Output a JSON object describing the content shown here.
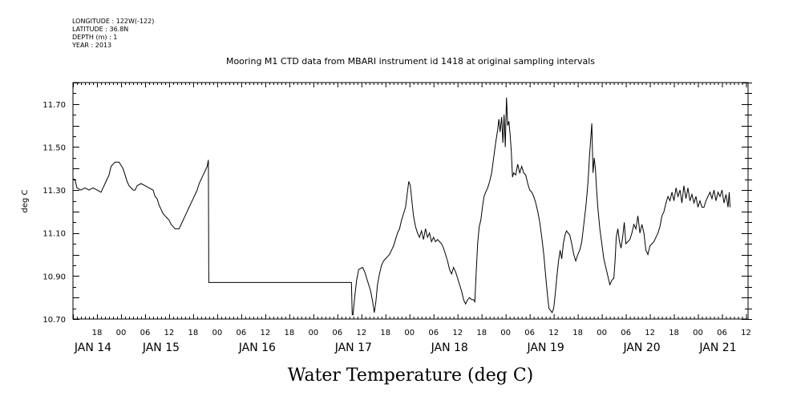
{
  "header": {
    "meta_lines": [
      "LONGITUDE : 122W(-122)",
      "LATITUDE : 36.8N",
      "DEPTH (m) : 1",
      "YEAR : 2013"
    ]
  },
  "chart_data": {
    "type": "line",
    "title": "Mooring M1 CTD data from MBARI instrument id 1418 at original sampling intervals",
    "xlabel": "Water Temperature (deg C)",
    "ylabel": "deg C",
    "x_unit": "hours since 2013-01-14 00:00",
    "xlim": [
      12,
      180.5
    ],
    "ylim": [
      10.7,
      11.8
    ],
    "y_ticks": [
      10.7,
      10.9,
      11.1,
      11.3,
      11.5,
      11.7
    ],
    "y_tick_labels": [
      "10.70",
      "10.90",
      "11.10",
      "11.30",
      "11.50",
      "11.70"
    ],
    "x_hour_ticks": [
      18,
      24,
      30,
      36,
      42,
      48,
      54,
      60,
      66,
      72,
      78,
      84,
      90,
      96,
      102,
      108,
      114,
      120,
      126,
      132,
      138,
      144,
      150,
      156,
      162,
      168,
      174,
      180
    ],
    "x_hour_labels": [
      "18",
      "00",
      "06",
      "12",
      "18",
      "00",
      "06",
      "12",
      "18",
      "00",
      "06",
      "12",
      "18",
      "00",
      "06",
      "12",
      "18",
      "00",
      "06",
      "12",
      "18",
      "00",
      "06",
      "12",
      "18",
      "00",
      "06",
      "12"
    ],
    "day_labels": [
      {
        "label": "JAN 14",
        "x": 17
      },
      {
        "label": "JAN 15",
        "x": 34
      },
      {
        "label": "JAN 16",
        "x": 58
      },
      {
        "label": "JAN 17",
        "x": 82
      },
      {
        "label": "JAN 18",
        "x": 106
      },
      {
        "label": "JAN 19",
        "x": 130
      },
      {
        "label": "JAN 20",
        "x": 154
      },
      {
        "label": "JAN 21",
        "x": 173
      }
    ],
    "grid": false,
    "series": [
      {
        "points": [
          [
            12.0,
            11.35
          ],
          [
            12.5,
            11.35
          ],
          [
            13.0,
            11.31
          ],
          [
            14.0,
            11.3
          ],
          [
            15.0,
            11.31
          ],
          [
            16.0,
            11.3
          ],
          [
            17.0,
            11.31
          ],
          [
            18.0,
            11.3
          ],
          [
            19.0,
            11.29
          ],
          [
            19.5,
            11.31
          ],
          [
            20.0,
            11.33
          ],
          [
            21.0,
            11.37
          ],
          [
            21.5,
            11.41
          ],
          [
            22.5,
            11.43
          ],
          [
            23.5,
            11.43
          ],
          [
            24.5,
            11.4
          ],
          [
            25.0,
            11.37
          ],
          [
            25.5,
            11.34
          ],
          [
            26.0,
            11.32
          ],
          [
            26.5,
            11.31
          ],
          [
            27.0,
            11.3
          ],
          [
            27.5,
            11.3
          ],
          [
            28.0,
            11.32
          ],
          [
            29.0,
            11.33
          ],
          [
            30.0,
            11.32
          ],
          [
            31.0,
            11.31
          ],
          [
            32.0,
            11.3
          ],
          [
            32.5,
            11.27
          ],
          [
            33.0,
            11.26
          ],
          [
            33.5,
            11.23
          ],
          [
            34.0,
            11.21
          ],
          [
            34.5,
            11.19
          ],
          [
            35.0,
            11.18
          ],
          [
            35.5,
            11.17
          ],
          [
            36.0,
            11.16
          ],
          [
            36.5,
            11.14
          ],
          [
            37.0,
            11.13
          ],
          [
            37.5,
            11.12
          ],
          [
            38.0,
            11.12
          ],
          [
            38.5,
            11.12
          ],
          [
            39.0,
            11.14
          ],
          [
            39.5,
            11.16
          ],
          [
            40.0,
            11.18
          ],
          [
            40.5,
            11.2
          ],
          [
            41.0,
            11.22
          ],
          [
            41.5,
            11.24
          ],
          [
            42.0,
            11.26
          ],
          [
            42.5,
            11.28
          ],
          [
            43.0,
            11.3
          ],
          [
            43.5,
            11.33
          ],
          [
            44.0,
            11.35
          ],
          [
            44.5,
            11.37
          ],
          [
            45.0,
            11.39
          ],
          [
            45.5,
            11.41
          ],
          [
            45.8,
            11.44
          ],
          [
            45.9,
            10.87
          ],
          [
            81.5,
            10.87
          ],
          [
            81.7,
            10.72
          ],
          [
            81.9,
            10.72
          ],
          [
            82.3,
            10.8
          ],
          [
            82.8,
            10.88
          ],
          [
            83.3,
            10.93
          ],
          [
            84.3,
            10.94
          ],
          [
            84.8,
            10.92
          ],
          [
            85.3,
            10.89
          ],
          [
            85.8,
            10.86
          ],
          [
            86.3,
            10.83
          ],
          [
            86.8,
            10.78
          ],
          [
            87.2,
            10.73
          ],
          [
            87.6,
            10.78
          ],
          [
            88.0,
            10.86
          ],
          [
            88.5,
            10.91
          ],
          [
            89.0,
            10.95
          ],
          [
            89.5,
            10.97
          ],
          [
            90.0,
            10.98
          ],
          [
            90.5,
            10.99
          ],
          [
            91.0,
            11.0
          ],
          [
            91.5,
            11.02
          ],
          [
            92.0,
            11.04
          ],
          [
            92.5,
            11.07
          ],
          [
            93.0,
            11.1
          ],
          [
            93.5,
            11.12
          ],
          [
            94.0,
            11.16
          ],
          [
            94.5,
            11.19
          ],
          [
            95.0,
            11.22
          ],
          [
            95.4,
            11.28
          ],
          [
            95.8,
            11.34
          ],
          [
            96.2,
            11.32
          ],
          [
            96.6,
            11.25
          ],
          [
            97.0,
            11.18
          ],
          [
            97.5,
            11.13
          ],
          [
            98.0,
            11.1
          ],
          [
            98.5,
            11.08
          ],
          [
            99.0,
            11.11
          ],
          [
            99.5,
            11.07
          ],
          [
            100.0,
            11.12
          ],
          [
            100.5,
            11.08
          ],
          [
            101.0,
            11.1
          ],
          [
            101.5,
            11.06
          ],
          [
            102.0,
            11.08
          ],
          [
            102.5,
            11.06
          ],
          [
            103.0,
            11.07
          ],
          [
            103.5,
            11.06
          ],
          [
            104.0,
            11.05
          ],
          [
            104.5,
            11.03
          ],
          [
            105.0,
            11.0
          ],
          [
            105.5,
            10.97
          ],
          [
            106.0,
            10.93
          ],
          [
            106.5,
            10.91
          ],
          [
            107.0,
            10.94
          ],
          [
            107.5,
            10.92
          ],
          [
            108.0,
            10.89
          ],
          [
            108.5,
            10.86
          ],
          [
            109.0,
            10.83
          ],
          [
            109.5,
            10.79
          ],
          [
            110.0,
            10.77
          ],
          [
            110.5,
            10.79
          ],
          [
            111.0,
            10.8
          ],
          [
            111.5,
            10.79
          ],
          [
            112.0,
            10.79
          ],
          [
            112.3,
            10.78
          ],
          [
            112.6,
            10.9
          ],
          [
            113.0,
            11.05
          ],
          [
            113.4,
            11.13
          ],
          [
            113.8,
            11.16
          ],
          [
            114.2,
            11.22
          ],
          [
            114.6,
            11.27
          ],
          [
            115.0,
            11.29
          ],
          [
            115.5,
            11.31
          ],
          [
            116.0,
            11.34
          ],
          [
            116.5,
            11.38
          ],
          [
            117.0,
            11.45
          ],
          [
            117.5,
            11.52
          ],
          [
            118.0,
            11.58
          ],
          [
            118.3,
            11.63
          ],
          [
            118.6,
            11.57
          ],
          [
            119.0,
            11.64
          ],
          [
            119.3,
            11.52
          ],
          [
            119.6,
            11.65
          ],
          [
            119.9,
            11.5
          ],
          [
            120.2,
            11.73
          ],
          [
            120.5,
            11.6
          ],
          [
            120.8,
            11.62
          ],
          [
            121.1,
            11.56
          ],
          [
            121.4,
            11.48
          ],
          [
            121.7,
            11.36
          ],
          [
            122.0,
            11.38
          ],
          [
            122.5,
            11.37
          ],
          [
            123.0,
            11.42
          ],
          [
            123.5,
            11.38
          ],
          [
            124.0,
            11.41
          ],
          [
            124.5,
            11.38
          ],
          [
            125.0,
            11.37
          ],
          [
            125.5,
            11.33
          ],
          [
            126.0,
            11.3
          ],
          [
            126.5,
            11.29
          ],
          [
            127.0,
            11.27
          ],
          [
            127.5,
            11.24
          ],
          [
            128.0,
            11.2
          ],
          [
            128.5,
            11.15
          ],
          [
            129.0,
            11.08
          ],
          [
            129.5,
            11.0
          ],
          [
            130.0,
            10.9
          ],
          [
            130.4,
            10.82
          ],
          [
            130.8,
            10.75
          ],
          [
            131.2,
            10.74
          ],
          [
            131.6,
            10.73
          ],
          [
            132.0,
            10.75
          ],
          [
            132.4,
            10.82
          ],
          [
            132.8,
            10.9
          ],
          [
            133.2,
            10.97
          ],
          [
            133.6,
            11.02
          ],
          [
            134.0,
            10.98
          ],
          [
            134.4,
            11.05
          ],
          [
            134.8,
            11.09
          ],
          [
            135.2,
            11.11
          ],
          [
            135.6,
            11.1
          ],
          [
            136.0,
            11.09
          ],
          [
            136.5,
            11.05
          ],
          [
            137.0,
            11.0
          ],
          [
            137.5,
            10.97
          ],
          [
            138.0,
            11.0
          ],
          [
            138.5,
            11.02
          ],
          [
            139.0,
            11.06
          ],
          [
            139.5,
            11.14
          ],
          [
            140.0,
            11.22
          ],
          [
            140.3,
            11.28
          ],
          [
            140.6,
            11.35
          ],
          [
            140.9,
            11.45
          ],
          [
            141.2,
            11.53
          ],
          [
            141.5,
            11.61
          ],
          [
            141.8,
            11.38
          ],
          [
            142.1,
            11.45
          ],
          [
            142.4,
            11.4
          ],
          [
            142.7,
            11.3
          ],
          [
            143.0,
            11.22
          ],
          [
            143.5,
            11.12
          ],
          [
            144.0,
            11.05
          ],
          [
            144.5,
            10.98
          ],
          [
            145.0,
            10.94
          ],
          [
            145.5,
            10.9
          ],
          [
            146.0,
            10.86
          ],
          [
            146.5,
            10.88
          ],
          [
            147.0,
            10.89
          ],
          [
            147.3,
            10.97
          ],
          [
            147.6,
            11.08
          ],
          [
            148.0,
            11.12
          ],
          [
            148.4,
            11.06
          ],
          [
            148.8,
            11.03
          ],
          [
            149.2,
            11.08
          ],
          [
            149.6,
            11.15
          ],
          [
            150.0,
            11.05
          ],
          [
            150.5,
            11.06
          ],
          [
            151.0,
            11.07
          ],
          [
            151.5,
            11.1
          ],
          [
            152.0,
            11.14
          ],
          [
            152.5,
            11.12
          ],
          [
            153.0,
            11.18
          ],
          [
            153.5,
            11.1
          ],
          [
            154.0,
            11.14
          ],
          [
            154.5,
            11.1
          ],
          [
            155.0,
            11.02
          ],
          [
            155.5,
            11.0
          ],
          [
            156.0,
            11.04
          ],
          [
            156.5,
            11.05
          ],
          [
            157.0,
            11.06
          ],
          [
            157.5,
            11.08
          ],
          [
            158.0,
            11.1
          ],
          [
            158.5,
            11.13
          ],
          [
            159.0,
            11.18
          ],
          [
            159.5,
            11.2
          ],
          [
            160.0,
            11.24
          ],
          [
            160.5,
            11.27
          ],
          [
            161.0,
            11.25
          ],
          [
            161.5,
            11.29
          ],
          [
            162.0,
            11.25
          ],
          [
            162.5,
            11.31
          ],
          [
            163.0,
            11.27
          ],
          [
            163.5,
            11.3
          ],
          [
            164.0,
            11.24
          ],
          [
            164.5,
            11.32
          ],
          [
            165.0,
            11.26
          ],
          [
            165.5,
            11.31
          ],
          [
            166.0,
            11.25
          ],
          [
            166.5,
            11.28
          ],
          [
            167.0,
            11.24
          ],
          [
            167.5,
            11.27
          ],
          [
            168.0,
            11.22
          ],
          [
            168.5,
            11.25
          ],
          [
            169.0,
            11.22
          ],
          [
            169.5,
            11.22
          ],
          [
            170.0,
            11.25
          ],
          [
            170.5,
            11.27
          ],
          [
            171.0,
            11.29
          ],
          [
            171.5,
            11.26
          ],
          [
            172.0,
            11.3
          ],
          [
            172.5,
            11.25
          ],
          [
            173.0,
            11.29
          ],
          [
            173.5,
            11.27
          ],
          [
            174.0,
            11.3
          ],
          [
            174.5,
            11.24
          ],
          [
            175.0,
            11.28
          ],
          [
            175.5,
            11.22
          ],
          [
            175.8,
            11.29
          ],
          [
            176.0,
            11.22
          ]
        ]
      }
    ]
  }
}
